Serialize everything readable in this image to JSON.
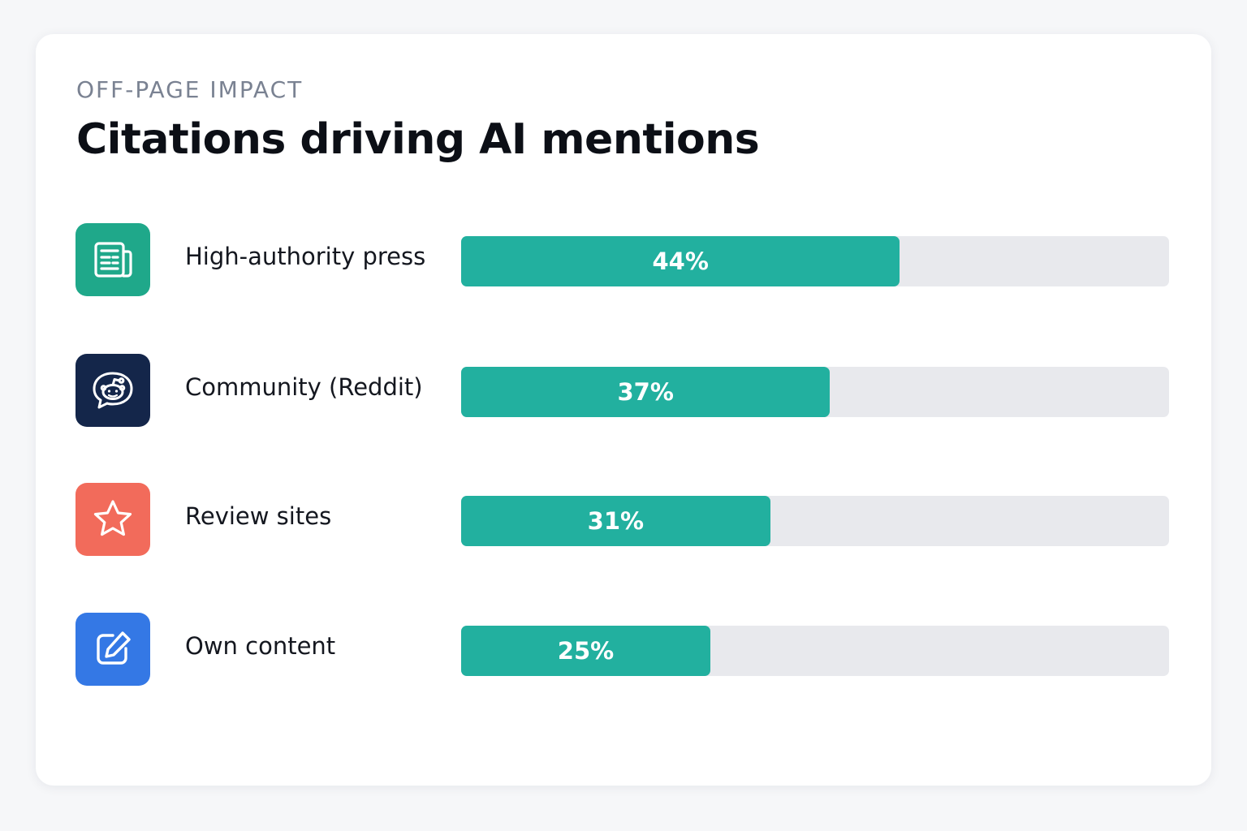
{
  "header": {
    "eyebrow": "OFF-PAGE IMPACT",
    "title": "Citations driving AI mentions"
  },
  "colors": {
    "bar_fill": "#22b09f",
    "bar_track": "#e8e9ed",
    "press_tile": "#1fa88a",
    "community_tile": "#14264a",
    "review_tile": "#f26b5b",
    "own_tile": "#3478e5"
  },
  "chart_data": {
    "type": "bar",
    "orientation": "horizontal",
    "title": "Citations driving AI mentions",
    "categories": [
      "High-authority press",
      "Community (Reddit)",
      "Review sites",
      "Own content"
    ],
    "values": [
      44,
      37,
      31,
      25
    ],
    "value_labels": [
      "44%",
      "37%",
      "31%",
      "25%"
    ],
    "unit": "%",
    "xlim": [
      0,
      71
    ],
    "grid": false,
    "legend": "none"
  },
  "rows": [
    {
      "icon": "newspaper-icon",
      "tile_color": "#1fa88a"
    },
    {
      "icon": "reddit-chat-icon",
      "tile_color": "#14264a"
    },
    {
      "icon": "star-icon",
      "tile_color": "#f26b5b"
    },
    {
      "icon": "edit-icon",
      "tile_color": "#3478e5"
    }
  ]
}
